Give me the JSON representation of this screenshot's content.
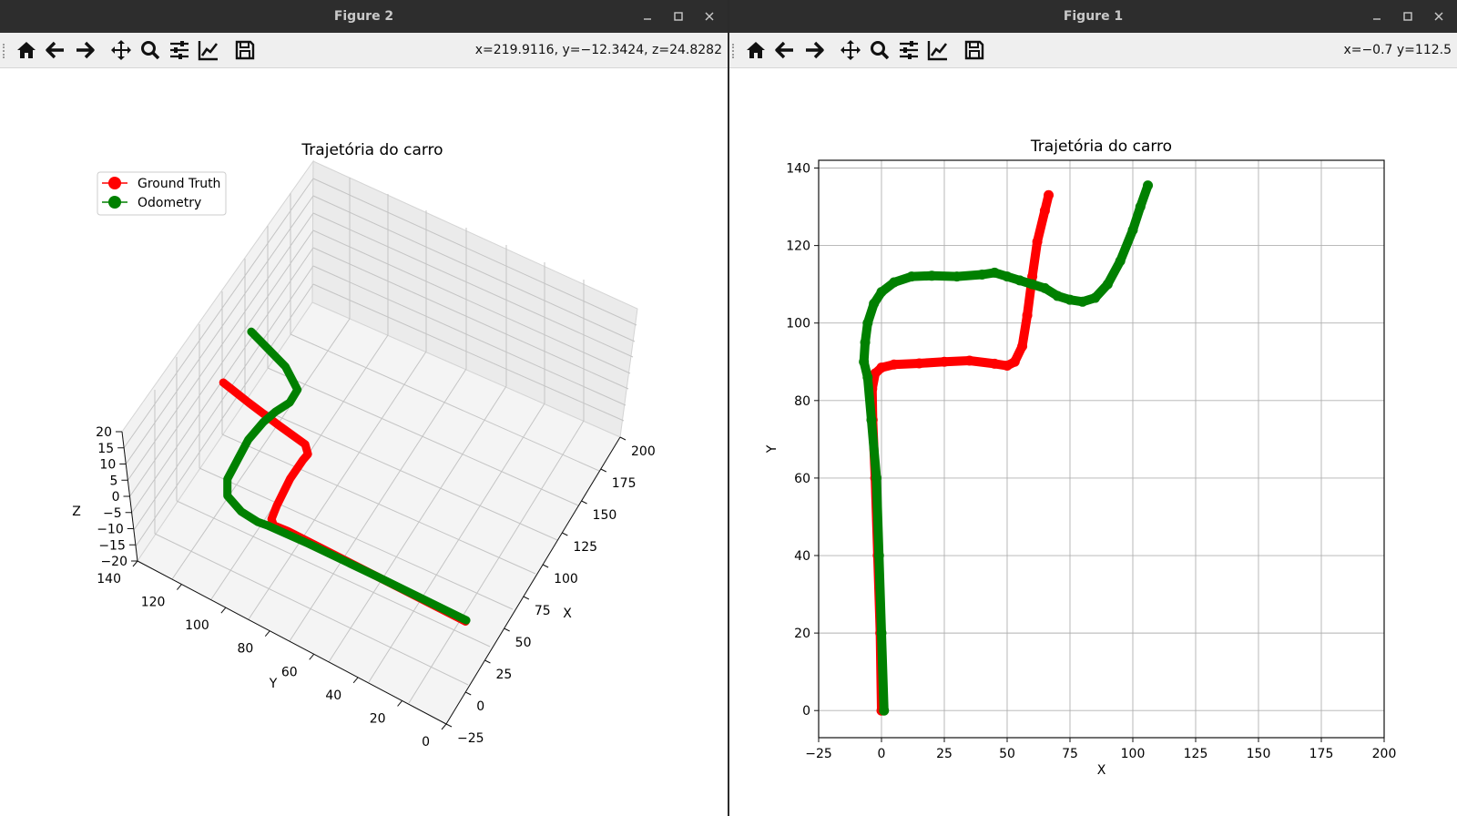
{
  "left_window": {
    "title": "Figure 2",
    "coords": "x=219.9116, y=−12.3424, z=24.8282",
    "toolbar": [
      "home-icon",
      "back-arrow-icon",
      "forward-arrow-icon",
      "pan-icon",
      "zoom-icon",
      "configure-subplots-icon",
      "edit-axis-icon",
      "save-icon"
    ]
  },
  "right_window": {
    "title": "Figure 1",
    "coords": "x=−0.7 y=112.5",
    "toolbar": [
      "home-icon",
      "back-arrow-icon",
      "forward-arrow-icon",
      "pan-icon",
      "zoom-icon",
      "configure-subplots-icon",
      "edit-axis-icon",
      "save-icon"
    ]
  },
  "window_buttons": [
    "minimize-icon",
    "maximize-icon",
    "close-icon"
  ],
  "colors": {
    "ground_truth": "#ff0000",
    "odometry": "#008000",
    "titlebar": "#2d2d2d",
    "toolbar": "#efefef"
  },
  "chart_data": [
    {
      "type": "scatter",
      "projection": "3d",
      "title": "Trajetória do carro",
      "xlabel": "X",
      "ylabel": "Y",
      "zlabel": "Z",
      "xticks": [
        "−25",
        "0",
        "25",
        "50",
        "75",
        "100",
        "125",
        "150",
        "175",
        "200"
      ],
      "yticks": [
        "0",
        "20",
        "40",
        "60",
        "80",
        "100",
        "120",
        "140"
      ],
      "zticks": [
        "−20",
        "−15",
        "−10",
        "−5",
        "0",
        "5",
        "10",
        "15",
        "20"
      ],
      "xlim": [
        -25,
        200
      ],
      "ylim": [
        0,
        140
      ],
      "zlim": [
        -20,
        20
      ],
      "legend": {
        "position": "upper-left",
        "entries": [
          "Ground Truth",
          "Odometry"
        ]
      },
      "series": [
        {
          "name": "Ground Truth",
          "color": "#ff0000",
          "points": [
            [
              0,
              0
            ],
            [
              -1,
              40
            ],
            [
              -2,
              80
            ],
            [
              -3,
              86
            ],
            [
              0,
              88
            ],
            [
              10,
              89
            ],
            [
              30,
              90
            ],
            [
              45,
              89.5
            ],
            [
              50,
              89
            ],
            [
              55,
              92
            ],
            [
              58,
              105
            ],
            [
              62,
              120
            ],
            [
              66,
              133
            ]
          ]
        },
        {
          "name": "Odometry",
          "color": "#008000",
          "points": [
            [
              1,
              0
            ],
            [
              -1,
              40
            ],
            [
              -3,
              70
            ],
            [
              -5,
              88
            ],
            [
              -6,
              92
            ],
            [
              -5,
              100
            ],
            [
              0,
              108
            ],
            [
              10,
              111.5
            ],
            [
              25,
              112
            ],
            [
              40,
              112.5
            ],
            [
              55,
              111
            ],
            [
              65,
              109
            ],
            [
              75,
              106
            ],
            [
              85,
              106
            ],
            [
              95,
              115
            ],
            [
              105,
              134
            ]
          ]
        }
      ]
    },
    {
      "type": "scatter",
      "title": "Trajetória do carro",
      "xlabel": "X",
      "ylabel": "Y",
      "xlim": [
        -25,
        200
      ],
      "ylim": [
        -7,
        142
      ],
      "xticks": [
        -25,
        0,
        25,
        50,
        75,
        100,
        125,
        150,
        175,
        200
      ],
      "yticks": [
        0,
        20,
        40,
        60,
        80,
        100,
        120,
        140
      ],
      "xtick_labels": [
        "−25",
        "0",
        "25",
        "50",
        "75",
        "100",
        "125",
        "150",
        "175",
        "200"
      ],
      "ytick_labels": [
        "0",
        "20",
        "40",
        "60",
        "80",
        "100",
        "120",
        "140"
      ],
      "grid": true,
      "series": [
        {
          "name": "Ground Truth",
          "color": "#ff0000",
          "points": [
            [
              0,
              0
            ],
            [
              -0.5,
              20
            ],
            [
              -1.5,
              40
            ],
            [
              -2.5,
              60
            ],
            [
              -3.5,
              75
            ],
            [
              -3.7,
              83
            ],
            [
              -2.5,
              87
            ],
            [
              0,
              88.5
            ],
            [
              5,
              89.3
            ],
            [
              15,
              89.6
            ],
            [
              25,
              90
            ],
            [
              35,
              90.3
            ],
            [
              45,
              89.5
            ],
            [
              50,
              89
            ],
            [
              53,
              90
            ],
            [
              56,
              94
            ],
            [
              58,
              102
            ],
            [
              60,
              112
            ],
            [
              62,
              121
            ],
            [
              65,
              129
            ],
            [
              66.5,
              133
            ]
          ]
        },
        {
          "name": "Odometry",
          "color": "#008000",
          "points": [
            [
              1,
              0
            ],
            [
              0,
              20
            ],
            [
              -1,
              40
            ],
            [
              -2,
              60
            ],
            [
              -4,
              75
            ],
            [
              -5.5,
              86
            ],
            [
              -7,
              90
            ],
            [
              -6.5,
              95
            ],
            [
              -5.5,
              100
            ],
            [
              -3,
              105
            ],
            [
              0,
              108
            ],
            [
              5,
              110.5
            ],
            [
              12,
              112
            ],
            [
              20,
              112.2
            ],
            [
              30,
              112
            ],
            [
              40,
              112.5
            ],
            [
              45,
              113
            ],
            [
              50,
              112
            ],
            [
              55,
              111
            ],
            [
              60,
              110
            ],
            [
              65,
              109
            ],
            [
              70,
              107
            ],
            [
              75,
              106
            ],
            [
              80,
              105.5
            ],
            [
              85,
              106.5
            ],
            [
              90,
              110
            ],
            [
              95,
              116
            ],
            [
              100,
              124
            ],
            [
              103,
              130
            ],
            [
              106,
              135.5
            ]
          ]
        }
      ]
    }
  ]
}
